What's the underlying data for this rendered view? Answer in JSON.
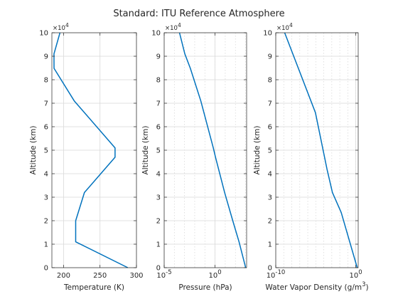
{
  "title": "Standard: ITU Reference Atmosphere",
  "colors": {
    "line": "#0072bd",
    "grid": "#d9d9d9",
    "axes": "#262626"
  },
  "chart_data": [
    {
      "type": "line",
      "xlabel": "Temperature (K)",
      "ylabel": "Altitude (km)",
      "xscale": "linear",
      "xlim": [
        184,
        300
      ],
      "ylim": [
        0,
        100000
      ],
      "xticks": [
        {
          "v": 200,
          "label": "200"
        },
        {
          "v": 250,
          "label": "250"
        },
        {
          "v": 300,
          "label": "300"
        }
      ],
      "yticks": [
        {
          "v": 0,
          "label": "0"
        },
        {
          "v": 10000,
          "label": "1"
        },
        {
          "v": 20000,
          "label": "2"
        },
        {
          "v": 30000,
          "label": "3"
        },
        {
          "v": 40000,
          "label": "4"
        },
        {
          "v": 50000,
          "label": "5"
        },
        {
          "v": 60000,
          "label": "6"
        },
        {
          "v": 70000,
          "label": "7"
        },
        {
          "v": 80000,
          "label": "8"
        },
        {
          "v": 90000,
          "label": "9"
        },
        {
          "v": 100000,
          "label": "10"
        }
      ],
      "y_multiplier": "×10",
      "y_exponent": "4",
      "grid": true,
      "minor_grid": false,
      "series": [
        {
          "x": [
            288.15,
            216.65,
            216.65,
            228.65,
            270.65,
            270.65,
            214.65,
            186.95,
            186.87,
            195.08
          ],
          "y": [
            0,
            11000,
            20000,
            32000,
            47000,
            51000,
            71000,
            84852,
            91000,
            100000
          ]
        }
      ]
    },
    {
      "type": "line",
      "xlabel": "Pressure (hPa)",
      "ylabel": "Altitude (km)",
      "xscale": "log",
      "xlim": [
        -5,
        3.1
      ],
      "ylim": [
        0,
        100000
      ],
      "xticks": [
        {
          "v": -5,
          "label": "10",
          "exp": "-5"
        },
        {
          "v": 0,
          "label": "10",
          "exp": "0"
        }
      ],
      "yticks": [
        {
          "v": 0,
          "label": "0"
        },
        {
          "v": 10000,
          "label": "1"
        },
        {
          "v": 20000,
          "label": "2"
        },
        {
          "v": 30000,
          "label": "3"
        },
        {
          "v": 40000,
          "label": "4"
        },
        {
          "v": 50000,
          "label": "5"
        },
        {
          "v": 60000,
          "label": "6"
        },
        {
          "v": 70000,
          "label": "7"
        },
        {
          "v": 80000,
          "label": "8"
        },
        {
          "v": 90000,
          "label": "9"
        },
        {
          "v": 100000,
          "label": "10"
        }
      ],
      "y_multiplier": "×10",
      "y_exponent": "4",
      "grid": true,
      "minor_grid": true,
      "series": [
        {
          "x": [
            1013.25,
            226.3,
            54.75,
            8.68,
            1.109,
            0.669,
            0.0396,
            0.00373,
            0.00107,
            0.00032
          ],
          "y": [
            0,
            11000,
            20000,
            32000,
            47000,
            51000,
            71000,
            84852,
            91000,
            100000
          ]
        }
      ]
    },
    {
      "type": "line",
      "xlabel": "Water Vapor Density (g/m",
      "xlabel_sup": "3",
      "xlabel_tail": ")",
      "ylabel": "Altitude (km)",
      "xscale": "log",
      "xlim": [
        -10,
        0.3
      ],
      "ylim": [
        0,
        100000
      ],
      "xticks": [
        {
          "v": -10,
          "label": "10",
          "exp": "-10"
        },
        {
          "v": 0,
          "label": "10",
          "exp": "0"
        }
      ],
      "yticks": [
        {
          "v": 0,
          "label": "0"
        },
        {
          "v": 10000,
          "label": "1"
        },
        {
          "v": 20000,
          "label": "2"
        },
        {
          "v": 30000,
          "label": "3"
        },
        {
          "v": 40000,
          "label": "4"
        },
        {
          "v": 50000,
          "label": "5"
        },
        {
          "v": 60000,
          "label": "6"
        },
        {
          "v": 70000,
          "label": "7"
        },
        {
          "v": 80000,
          "label": "8"
        },
        {
          "v": 90000,
          "label": "9"
        },
        {
          "v": 100000,
          "label": "10"
        }
      ],
      "y_multiplier": "×10",
      "y_exponent": "4",
      "grid": true,
      "minor_grid": true,
      "series": [
        {
          "x": [
            1.5,
            0.015,
            0.0012,
            0.00025,
            9e-06,
            1.3e-09
          ],
          "y": [
            0,
            23500,
            32000,
            42000,
            66000,
            100000
          ]
        }
      ]
    }
  ]
}
